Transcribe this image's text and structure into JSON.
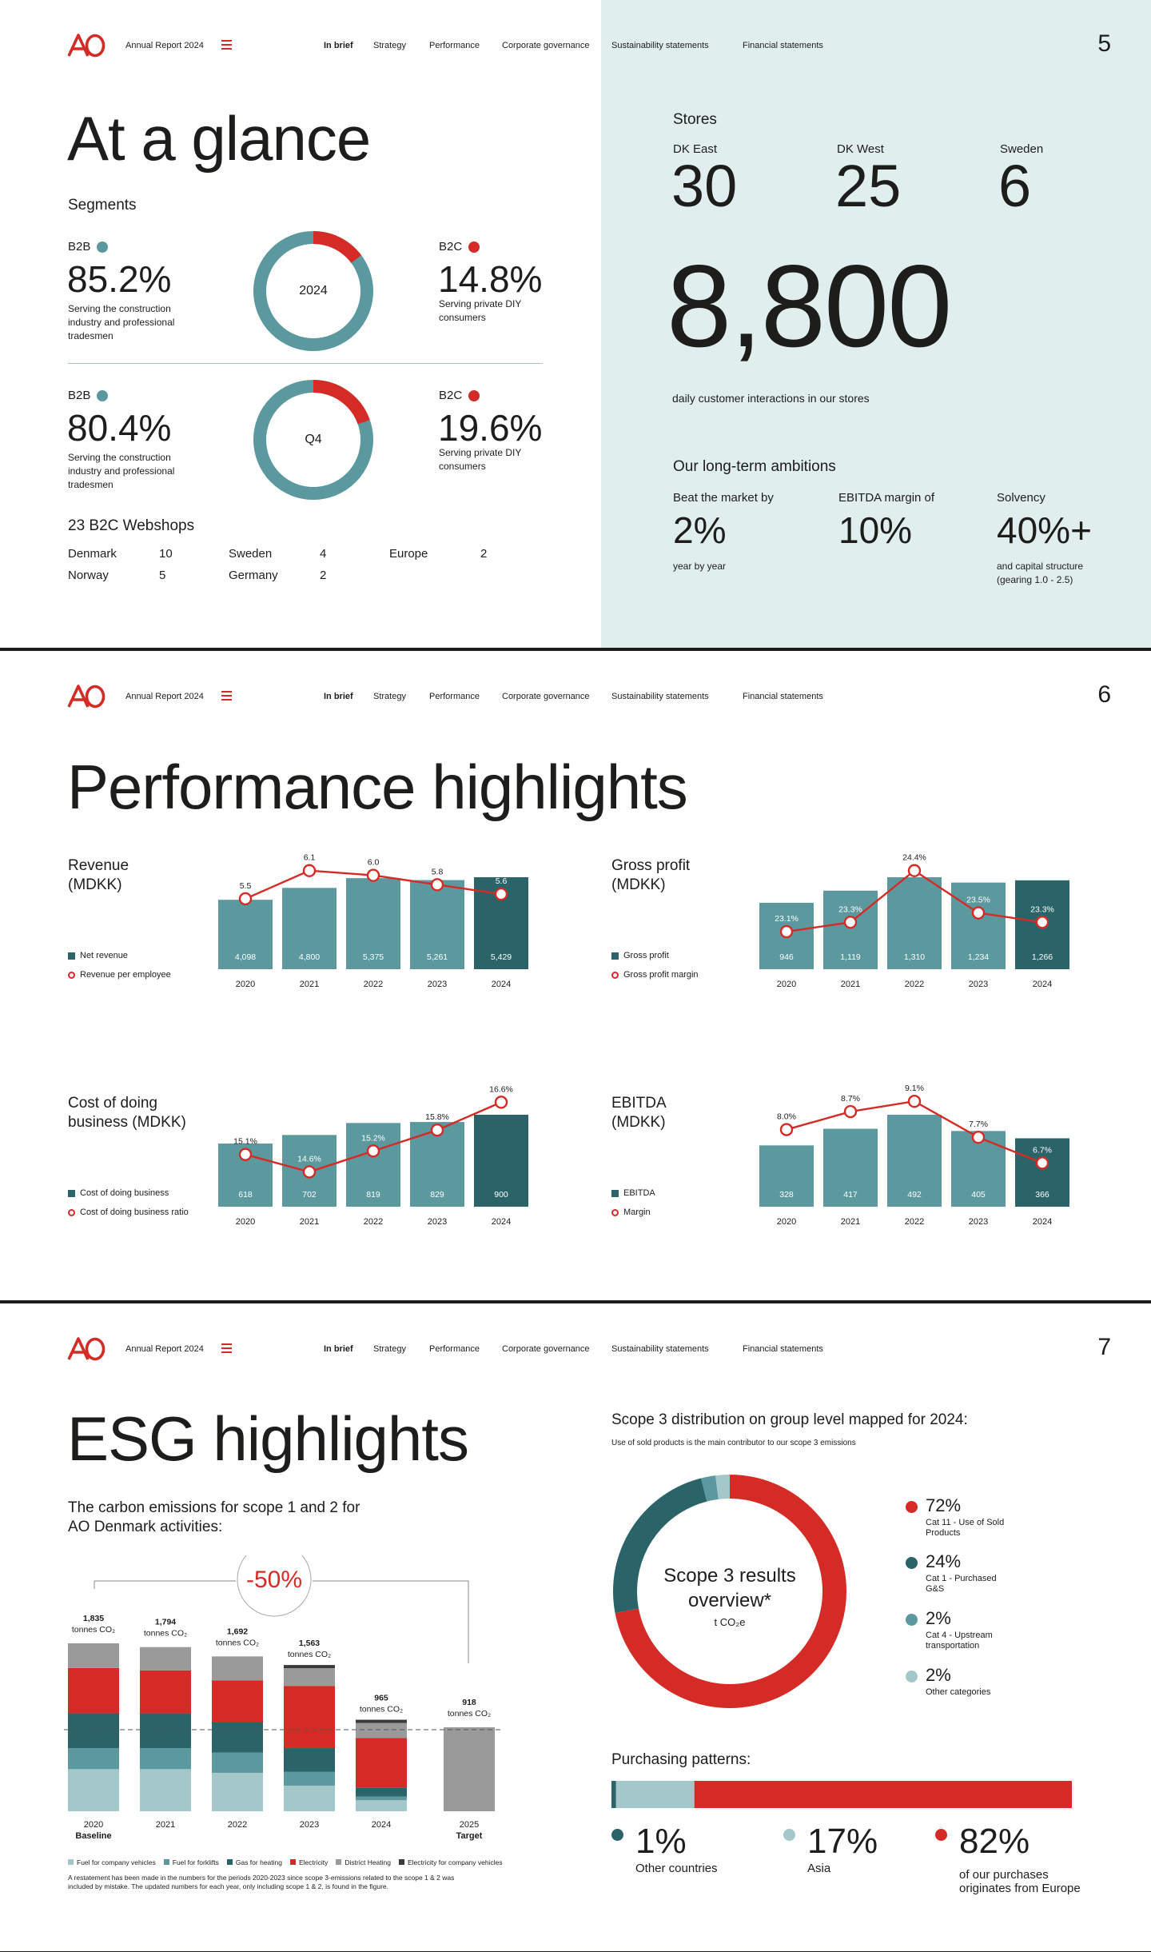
{
  "header": {
    "report": "Annual Report 2024",
    "nav": [
      "In brief",
      "Strategy",
      "Performance",
      "Corporate governance",
      "Sustainability statements",
      "Financial statements"
    ],
    "active": "In brief"
  },
  "colors": {
    "teal": "#5b999f",
    "dark_teal": "#2a6468",
    "red": "#d52b26",
    "light": "#a4c8c9",
    "panel": "#e1eeee"
  },
  "page1": {
    "number": "5",
    "title": "At a glance",
    "segments_label": "Segments",
    "rows": [
      {
        "center": "2024",
        "b2b_label": "B2B",
        "b2b_value": "85.2%",
        "b2b_desc": [
          "Serving the construction",
          "industry and professional",
          "tradesmen"
        ],
        "b2c_label": "B2C",
        "b2c_value": "14.8%",
        "b2c_desc": [
          "Serving private DIY",
          "consumers"
        ],
        "b2c_share": 14.8
      },
      {
        "center": "Q4",
        "b2b_label": "B2B",
        "b2b_value": "80.4%",
        "b2b_desc": [
          "Serving the construction",
          "industry and professional",
          "tradesmen"
        ],
        "b2c_label": "B2C",
        "b2c_value": "19.6%",
        "b2c_desc": [
          "Serving private DIY",
          "consumers"
        ],
        "b2c_share": 19.6
      }
    ],
    "webshops_label": "23 B2C Webshops",
    "webshops": [
      {
        "country": "Denmark",
        "count": "10"
      },
      {
        "country": "Sweden",
        "count": "4"
      },
      {
        "country": "Europe",
        "count": "2"
      },
      {
        "country": "Norway",
        "count": "5"
      },
      {
        "country": "Germany",
        "count": "2"
      }
    ],
    "stores_label": "Stores",
    "stores": [
      {
        "region": "DK East",
        "count": "30"
      },
      {
        "region": "DK West",
        "count": "25"
      },
      {
        "region": "Sweden",
        "count": "6"
      }
    ],
    "interactions_value": "8,800",
    "interactions_label": "daily customer interactions in our stores",
    "ambitions_label": "Our long-term ambitions",
    "ambitions": [
      {
        "title": "Beat the market by",
        "value": "2%",
        "note": [
          "year by year"
        ]
      },
      {
        "title": "EBITDA margin of",
        "value": "10%",
        "note": []
      },
      {
        "title": "Solvency",
        "value": "40%+",
        "note": [
          "and capital structure",
          "(gearing 1.0 - 2.5)"
        ]
      }
    ]
  },
  "page2": {
    "number": "6",
    "title": "Performance highlights"
  },
  "chart_data": [
    {
      "type": "bar",
      "title_lines": [
        "Revenue",
        "(MDKK)"
      ],
      "categories": [
        "2020",
        "2021",
        "2022",
        "2023",
        "2024"
      ],
      "bar_name": "Net revenue",
      "bars": [
        4098,
        4800,
        5375,
        5261,
        5429
      ],
      "bar_labels": [
        "4,098",
        "4,800",
        "5,375",
        "5,261",
        "5,429"
      ],
      "line_name": "Revenue per employee",
      "line": [
        5.5,
        6.1,
        6.0,
        5.8,
        5.6
      ],
      "line_labels": [
        "5.5",
        "6.1",
        "6.0",
        "5.8",
        "5.6"
      ],
      "line_range": [
        4.0,
        6.3
      ]
    },
    {
      "type": "bar",
      "title_lines": [
        "Gross profit",
        "(MDKK)"
      ],
      "categories": [
        "2020",
        "2021",
        "2022",
        "2023",
        "2024"
      ],
      "bar_name": "Gross profit",
      "bars": [
        946,
        1119,
        1310,
        1234,
        1266
      ],
      "bar_labels": [
        "946",
        "1,119",
        "1,310",
        "1,234",
        "1,266"
      ],
      "line_name": "Gross profit margin",
      "line": [
        23.1,
        23.3,
        24.4,
        23.5,
        23.3
      ],
      "line_labels": [
        "23.1%",
        "23.3%",
        "24.4%",
        "23.5%",
        "23.3%"
      ],
      "line_range": [
        22.3,
        24.6
      ]
    },
    {
      "type": "bar",
      "title_lines": [
        "Cost of doing",
        "business (MDKK)"
      ],
      "categories": [
        "2020",
        "2021",
        "2022",
        "2023",
        "2024"
      ],
      "bar_name": "Cost of doing business",
      "bars": [
        618,
        702,
        819,
        829,
        900
      ],
      "bar_labels": [
        "618",
        "702",
        "819",
        "829",
        "900"
      ],
      "line_name": "Cost of doing business ratio",
      "line": [
        15.1,
        14.6,
        15.2,
        15.8,
        16.6
      ],
      "line_labels": [
        "15.1%",
        "14.6%",
        "15.2%",
        "15.8%",
        "16.6%"
      ],
      "line_range": [
        13.6,
        16.7
      ]
    },
    {
      "type": "bar",
      "title_lines": [
        "EBITDA",
        "(MDKK)"
      ],
      "categories": [
        "2020",
        "2021",
        "2022",
        "2023",
        "2024"
      ],
      "bar_name": "EBITDA",
      "bars": [
        328,
        417,
        492,
        405,
        366
      ],
      "bar_labels": [
        "328",
        "417",
        "492",
        "405",
        "366"
      ],
      "line_name": "Margin",
      "line": [
        8.0,
        8.7,
        9.1,
        7.7,
        6.7
      ],
      "line_labels": [
        "8.0%",
        "8.7%",
        "9.1%",
        "7.7%",
        "6.7%"
      ],
      "line_range": [
        5.0,
        9.2
      ]
    },
    {
      "type": "bar",
      "title_lines": [
        "The carbon emissions for scope 1 and 2 for",
        "AO Denmark activities:"
      ],
      "reduction": "-50%",
      "categories": [
        "2020",
        "2021",
        "2022",
        "2023",
        "2024",
        "2025"
      ],
      "category_notes": [
        "Baseline",
        "",
        "",
        "",
        "",
        "Target"
      ],
      "totals": [
        1835,
        1794,
        1692,
        1563,
        965,
        918
      ],
      "total_labels": [
        "1,835",
        "1,794",
        "1,692",
        "1,563",
        "965",
        "918"
      ],
      "unit": "tonnes CO₂",
      "series": [
        {
          "name": "Fuel for company vehicles",
          "color": "#a4c8c9",
          "values": [
            460,
            460,
            420,
            280,
            120,
            0
          ]
        },
        {
          "name": "Fuel for forklifts",
          "color": "#5b999f",
          "values": [
            230,
            230,
            220,
            150,
            40,
            0
          ]
        },
        {
          "name": "Gas for heating",
          "color": "#2a6468",
          "values": [
            380,
            380,
            330,
            260,
            100,
            0
          ]
        },
        {
          "name": "Electricity",
          "color": "#d52b26",
          "values": [
            495,
            470,
            460,
            680,
            540,
            0
          ]
        },
        {
          "name": "District Heating",
          "color": "#9a9a9a",
          "values": [
            270,
            254,
            262,
            193,
            165,
            918
          ]
        },
        {
          "name": "Electricity for company vehicles",
          "color": "#3a3a3a",
          "values": [
            0,
            0,
            0,
            0,
            0,
            0
          ]
        }
      ],
      "note": [
        "A restatement has been made in the numbers for the periods 2020-2023 since scope 3-emissions related to the scope 1 & 2 was",
        "included by mistake. The updated numbers for each year, only including scope 1 & 2, is found in the figure."
      ]
    },
    {
      "type": "pie",
      "title": "Scope 3 distribution on group level mapped for 2024:",
      "subtitle": "Use of sold products is the main contributor to our scope 3 emissions",
      "center": [
        "Scope 3 results",
        "overview*",
        "t CO₂e"
      ],
      "slices": [
        {
          "value": 72,
          "label": "72%",
          "text": [
            "Cat 11 - Use of Sold",
            "Products"
          ],
          "color": "#d52b26"
        },
        {
          "value": 24,
          "label": "24%",
          "text": [
            "Cat 1 - Purchased",
            "G&S"
          ],
          "color": "#2a6468"
        },
        {
          "value": 2,
          "label": "2%",
          "text": [
            "Cat 4 - Upstream",
            "transportation"
          ],
          "color": "#5b999f"
        },
        {
          "value": 2,
          "label": "2%",
          "text": [
            "Other categories"
          ],
          "color": "#a4c8c9"
        }
      ]
    },
    {
      "type": "bar",
      "title": "Purchasing patterns:",
      "segments": [
        {
          "value": 1,
          "label": "1%",
          "text": [
            "Other countries"
          ],
          "color": "#2a6468"
        },
        {
          "value": 17,
          "label": "17%",
          "text": [
            "Asia"
          ],
          "color": "#a4c8c9"
        },
        {
          "value": 82,
          "label": "82%",
          "text": [
            "of our purchases",
            "originates from Europe"
          ],
          "color": "#d52b26"
        }
      ]
    }
  ],
  "page3": {
    "number": "7",
    "title": "ESG highlights"
  }
}
